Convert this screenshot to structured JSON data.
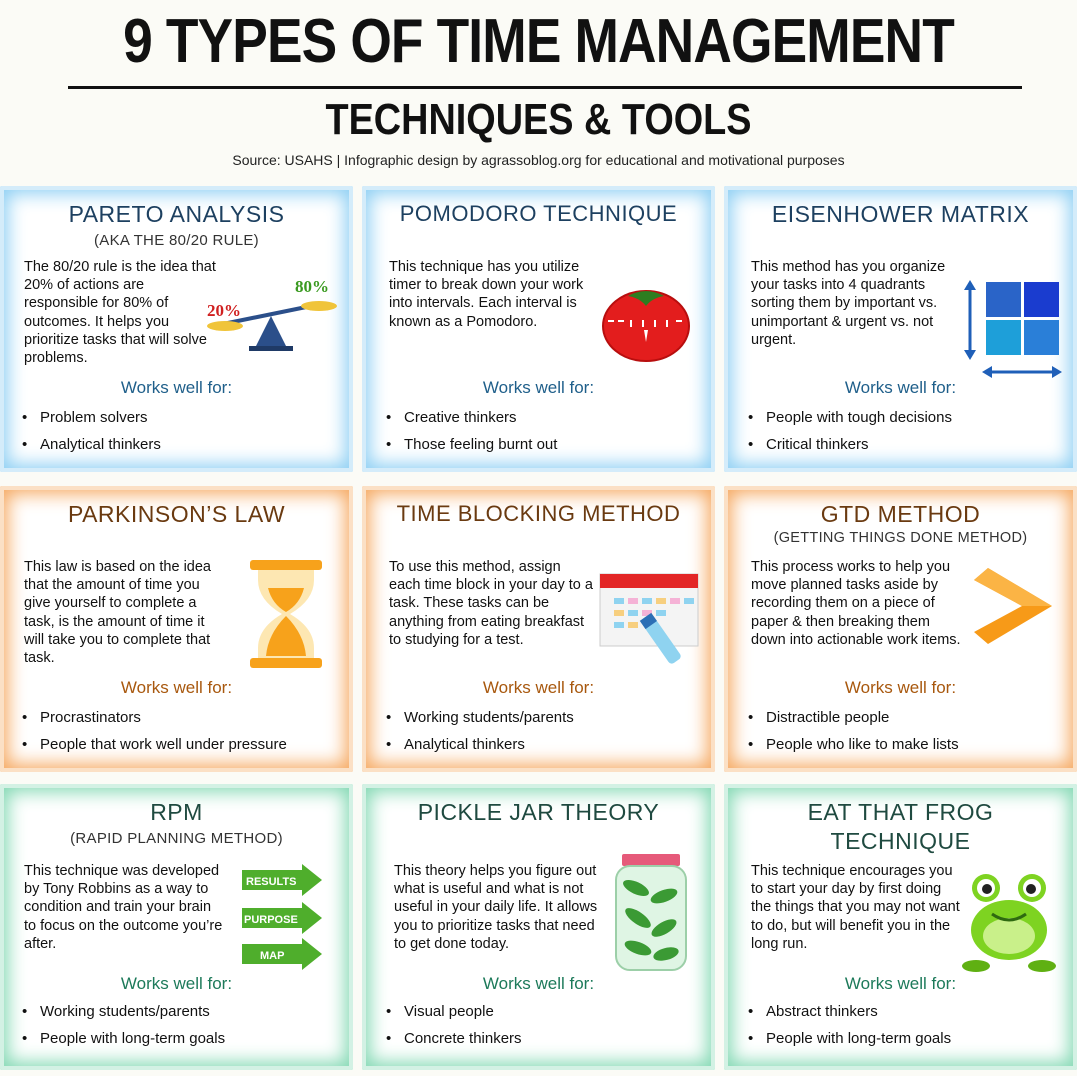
{
  "header": {
    "title": "9 TYPES OF TIME MANAGEMENT",
    "subtitle": "TECHNIQUES & TOOLS",
    "source": "Source: USAHS | Infographic design by agrassoblog.org for educational and motivational purposes"
  },
  "works_label": "Works well for:",
  "bullet": "•",
  "colors": {
    "blue": "#8fd0f4",
    "orange": "#f6aa63",
    "green": "#84d9b4"
  },
  "cards": [
    {
      "title": "PARETO ANALYSIS",
      "subtitle": "(AKA THE 80/20 RULE)",
      "description": "The 80/20 rule is the idea that 20% of actions are responsible for 80% of outcomes. It helps you prioritize tasks that will solve problems.",
      "icon": "balance-scale-icon",
      "icon_labels": {
        "left": "20%",
        "right": "80%"
      },
      "works_for": [
        "Problem solvers",
        "Analytical thinkers"
      ]
    },
    {
      "title": "POMODORO TECHNIQUE",
      "subtitle": "",
      "description": "This technique has you utilize timer to break down your work into intervals. Each interval is known as a Pomodoro.",
      "icon": "tomato-timer-icon",
      "works_for": [
        "Creative thinkers",
        "Those feeling burnt out"
      ]
    },
    {
      "title": "EISENHOWER MATRIX",
      "subtitle": "",
      "description": "This method has you organize your tasks into 4 quadrants sorting them by important vs. unimportant & urgent vs. not urgent.",
      "icon": "quadrant-matrix-icon",
      "works_for": [
        "People with tough decisions",
        "Critical thinkers"
      ]
    },
    {
      "title": "PARKINSON’S LAW",
      "subtitle": "",
      "description": "This law is based on the idea that the amount of time you give yourself to complete a task, is the amount of time it will take you to complete that task.",
      "icon": "hourglass-icon",
      "works_for": [
        "Procrastinators",
        "People that work well under pressure"
      ]
    },
    {
      "title": "TIME BLOCKING METHOD",
      "subtitle": "",
      "description": "To use this method, assign each time block in your day to a task. These tasks can be anything from eating breakfast to studying for a test.",
      "icon": "calendar-blocks-icon",
      "works_for": [
        "Working students/parents",
        "Analytical thinkers"
      ]
    },
    {
      "title": "GTD METHOD",
      "subtitle": "(GETTING THINGS DONE METHOD)",
      "description": "This process works to help you move planned tasks aside by recording them on a piece of paper & then breaking them down into actionable work items.",
      "icon": "chevron-right-icon",
      "works_for": [
        "Distractible people",
        "People who like to make lists"
      ]
    },
    {
      "title": "RPM",
      "subtitle": "(RAPID PLANNING METHOD)",
      "description": "This technique was developed by Tony Robbins as a way to condition and train your brain to focus on the outcome you’re after.",
      "icon": "arrow-labels-icon",
      "icon_labels": [
        "RESULTS",
        "PURPOSE",
        "MAP"
      ],
      "works_for": [
        "Working students/parents",
        "People with long-term goals"
      ]
    },
    {
      "title": "PICKLE JAR THEORY",
      "subtitle": "",
      "description": "This theory helps you figure out what is useful and what is not useful in your daily life. It allows you to prioritize tasks that need to get done today.",
      "icon": "pickle-jar-icon",
      "works_for": [
        "Visual people",
        "Concrete thinkers"
      ]
    },
    {
      "title": "EAT THAT FROG TECHNIQUE",
      "subtitle": "",
      "description": "This technique encourages you to start your day by first doing the things that you may not want to do, but will benefit you in the long run.",
      "icon": "frog-icon",
      "works_for": [
        "Abstract thinkers",
        "People with long-term goals"
      ]
    }
  ]
}
